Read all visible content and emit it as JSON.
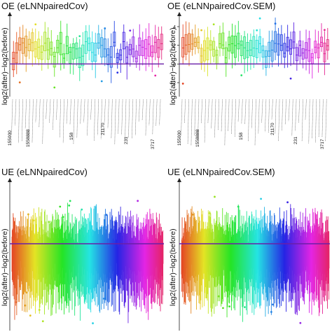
{
  "chart_data": [
    {
      "type": "box",
      "panel": "top-left",
      "title": "OE (eLNNpairedCov)",
      "ylabel": "log2(after)−log2(before)",
      "ylim": [
        -3.5,
        5.5
      ],
      "yticks": [],
      "reference_line": {
        "y": 0,
        "color": "#6a1fa8"
      },
      "n_boxes": 48,
      "box_median_range": [
        0.5,
        2.5
      ],
      "outlier_y_range": [
        -3,
        5
      ],
      "x_tick_labels_rotated": true,
      "x_tick_labels_visible": [
        "155000",
        "1558888",
        "158",
        "21170",
        "231",
        "3717"
      ],
      "hue_gradient": "rainbow"
    },
    {
      "type": "box",
      "panel": "top-right",
      "title": "OE (eLNNpairedCov.SEM)",
      "ylabel": "log2(after)−log2(before)",
      "ylim": [
        -3.5,
        5.5
      ],
      "yticks": [
        -2,
        0,
        2,
        4
      ],
      "reference_line": {
        "y": 0,
        "color": "#6a1fa8"
      },
      "n_boxes": 48,
      "box_median_range": [
        0.5,
        2.5
      ],
      "outlier_y_range": [
        -3,
        5
      ],
      "x_tick_labels_rotated": true,
      "x_tick_labels_visible": [
        "155000",
        "1558888",
        "158",
        "21170",
        "231",
        "3717"
      ],
      "hue_gradient": "rainbow"
    },
    {
      "type": "box",
      "panel": "bottom-left",
      "title": "UE (eLNNpairedCov)",
      "ylabel": "log2(after)−log2(before)",
      "ylim": [
        -6,
        4.5
      ],
      "yticks": [],
      "reference_line": {
        "y": 0,
        "color": "#6a1fa8"
      },
      "n_boxes": 300,
      "outlier_y_range": [
        -5.5,
        3.5
      ],
      "hue_gradient": "rainbow"
    },
    {
      "type": "box",
      "panel": "bottom-right",
      "title": "UE (eLNNpairedCov.SEM)",
      "ylabel": "log2(after)−log2(before)",
      "ylim": [
        -6,
        4.5
      ],
      "yticks": [],
      "reference_line": {
        "y": 0,
        "color": "#6a1fa8"
      },
      "n_boxes": 300,
      "outlier_y_range": [
        -5.5,
        3.5
      ],
      "hue_gradient": "rainbow"
    }
  ]
}
